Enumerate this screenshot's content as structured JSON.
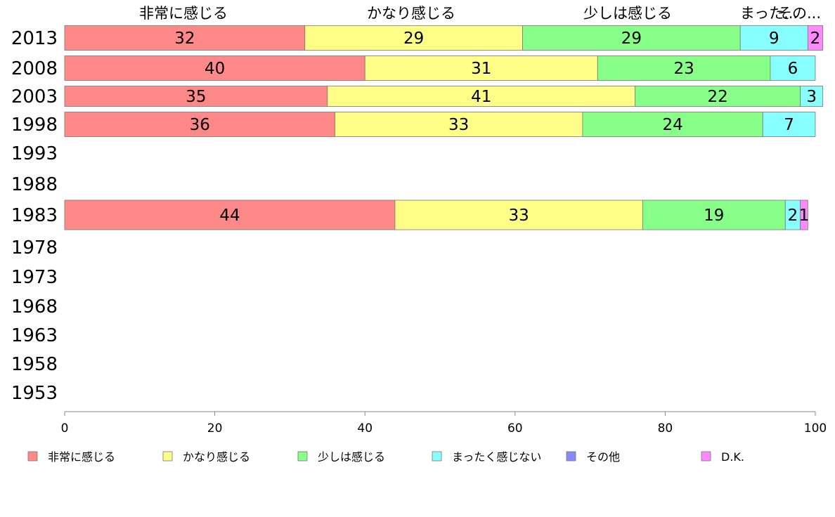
{
  "chart_data": {
    "type": "bar",
    "orientation": "horizontal",
    "stacked": true,
    "categories": [
      "2013",
      "2008",
      "2003",
      "1998",
      "1993",
      "1988",
      "1983",
      "1978",
      "1973",
      "1968",
      "1963",
      "1958",
      "1953"
    ],
    "series": [
      {
        "name": "非常に感じる",
        "color": "#ff8888",
        "values": [
          32,
          40,
          35,
          36,
          null,
          null,
          44,
          null,
          null,
          null,
          null,
          null,
          null
        ]
      },
      {
        "name": "かなり感じる",
        "color": "#ffff88",
        "values": [
          29,
          31,
          41,
          33,
          null,
          null,
          33,
          null,
          null,
          null,
          null,
          null,
          null
        ]
      },
      {
        "name": "少しは感じる",
        "color": "#88ff88",
        "values": [
          29,
          23,
          22,
          24,
          null,
          null,
          19,
          null,
          null,
          null,
          null,
          null,
          null
        ]
      },
      {
        "name": "まったく感じない",
        "color": "#88ffff",
        "values": [
          9,
          6,
          3,
          7,
          null,
          null,
          2,
          null,
          null,
          null,
          null,
          null,
          null
        ]
      },
      {
        "name": "その他",
        "color": "#8888ff",
        "values": [
          0,
          0,
          0,
          0,
          null,
          null,
          0,
          null,
          null,
          null,
          null,
          null,
          null
        ]
      },
      {
        "name": "D.K.",
        "color": "#ff88ff",
        "values": [
          2,
          0,
          0,
          0,
          null,
          null,
          1,
          null,
          null,
          null,
          null,
          null,
          null
        ]
      }
    ],
    "column_headers": [
      "非常に感じる",
      "かなり感じる",
      "少しは感じる",
      "まったく感じない",
      "その他"
    ],
    "column_header_display": [
      "非常に感じる",
      "かなり感じる",
      "少しは感じる",
      "まった...",
      "その..."
    ],
    "xlim": [
      0,
      100
    ],
    "xticks": [
      0,
      20,
      40,
      60,
      80,
      100
    ],
    "legend_position": "bottom",
    "grid": false
  }
}
